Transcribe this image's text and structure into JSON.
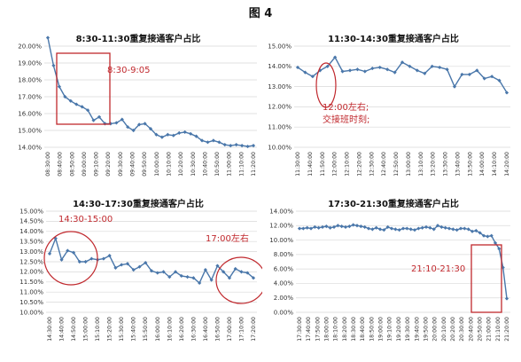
{
  "figure_title": "图 4",
  "chart_data": [
    {
      "type": "line",
      "title": "8:30-11:30重复接通客户占比",
      "ylim": [
        0.14,
        0.2
      ],
      "y_ticks": [
        "14.00%",
        "15.00%",
        "16.00%",
        "17.00%",
        "18.00%",
        "19.00%",
        "20.00%"
      ],
      "x_ticks": [
        "08:30:00",
        "08:40:00",
        "08:50:00",
        "09:00:00",
        "09:10:00",
        "09:20:00",
        "09:30:00",
        "09:40:00",
        "09:50:00",
        "10:00:00",
        "10:10:00",
        "10:20:00",
        "10:30:00",
        "10:40:00",
        "10:50:00",
        "11:00:00",
        "11:10:00",
        "11:20:00"
      ],
      "values": [
        0.205,
        0.1885,
        0.176,
        0.17,
        0.1675,
        0.1655,
        0.164,
        0.162,
        0.156,
        0.158,
        0.154,
        0.154,
        0.1545,
        0.1565,
        0.152,
        0.15,
        0.1535,
        0.154,
        0.151,
        0.1475,
        0.146,
        0.1475,
        0.147,
        0.1485,
        0.149,
        0.148,
        0.1465,
        0.144,
        0.143,
        0.144,
        0.143,
        0.1415,
        0.141,
        0.1415,
        0.141,
        0.1405,
        0.141
      ],
      "annotations": [
        {
          "text": "8:30-9:05"
        }
      ],
      "grid": true,
      "series_color": "#4a77aa"
    },
    {
      "type": "line",
      "title": "11:30-14:30重复接通客户占比",
      "ylim": [
        0.1,
        0.15
      ],
      "y_ticks": [
        "10.00%",
        "11.00%",
        "12.00%",
        "13.00%",
        "14.00%",
        "15.00%"
      ],
      "x_ticks": [
        "11:30:00",
        "11:40:00",
        "11:50:00",
        "12:00:00",
        "12:10:00",
        "12:20:00",
        "12:30:00",
        "12:40:00",
        "12:50:00",
        "13:00:00",
        "13:10:00",
        "13:20:00",
        "13:30:00",
        "13:40:00",
        "13:50:00",
        "14:00:00",
        "14:10:00",
        "14:20:00"
      ],
      "values": [
        0.1395,
        0.137,
        0.135,
        0.138,
        0.14,
        0.1445,
        0.1375,
        0.138,
        0.1385,
        0.1375,
        0.139,
        0.1395,
        0.1385,
        0.137,
        0.142,
        0.14,
        0.138,
        0.1365,
        0.14,
        0.1395,
        0.1385,
        0.13,
        0.136,
        0.136,
        0.138,
        0.134,
        0.135,
        0.133,
        0.127
      ],
      "annotations": [
        {
          "text": "12:00左右;"
        },
        {
          "text": "交接班时刻;"
        }
      ],
      "grid": true,
      "series_color": "#4a77aa"
    },
    {
      "type": "line",
      "title": "14:30-17:30重复接通客户占比",
      "ylim": [
        0.1,
        0.15
      ],
      "y_ticks": [
        "10.00%",
        "10.50%",
        "11.00%",
        "11.50%",
        "12.00%",
        "12.50%",
        "13.00%",
        "13.50%",
        "14.00%",
        "14.50%",
        "15.00%"
      ],
      "x_ticks": [
        "14:30:00",
        "14:40:00",
        "14:50:00",
        "15:00:00",
        "15:10:00",
        "15:20:00",
        "15:30:00",
        "15:40:00",
        "15:50:00",
        "16:00:00",
        "16:10:00",
        "16:20:00",
        "16:30:00",
        "16:40:00",
        "16:50:00",
        "17:00:00",
        "17:10:00",
        "17:20:00"
      ],
      "values": [
        0.129,
        0.1365,
        0.126,
        0.1305,
        0.1295,
        0.125,
        0.125,
        0.1265,
        0.126,
        0.1265,
        0.128,
        0.122,
        0.1235,
        0.124,
        0.121,
        0.1225,
        0.1245,
        0.1205,
        0.1195,
        0.12,
        0.1175,
        0.12,
        0.118,
        0.1175,
        0.117,
        0.1145,
        0.121,
        0.116,
        0.123,
        0.12,
        0.117,
        0.1215,
        0.12,
        0.1195,
        0.117
      ],
      "annotations": [
        {
          "text": "14:30-15:00"
        },
        {
          "text": "17:00左右"
        }
      ],
      "grid": true,
      "series_color": "#4a77aa"
    },
    {
      "type": "line",
      "title": "17:30-21:30重复接通客户占比",
      "ylim": [
        0.0,
        0.14
      ],
      "y_ticks": [
        "0.00%",
        "2.00%",
        "4.00%",
        "6.00%",
        "8.00%",
        "10.00%",
        "12.00%",
        "14.00%"
      ],
      "x_ticks": [
        "17:30:00",
        "17:40:00",
        "17:50:00",
        "18:00:00",
        "18:10:00",
        "18:20:00",
        "18:30:00",
        "18:40:00",
        "18:50:00",
        "19:00:00",
        "19:10:00",
        "19:20:00",
        "19:30:00",
        "19:40:00",
        "19:50:00",
        "20:00:00",
        "20:10:00",
        "20:20:00",
        "20:30:00",
        "20:40:00",
        "20:50:00",
        "21:00:00",
        "21:10:00",
        "21:20:00"
      ],
      "values": [
        0.116,
        0.116,
        0.117,
        0.116,
        0.118,
        0.117,
        0.118,
        0.119,
        0.117,
        0.118,
        0.12,
        0.119,
        0.118,
        0.119,
        0.121,
        0.12,
        0.119,
        0.118,
        0.116,
        0.115,
        0.117,
        0.115,
        0.114,
        0.118,
        0.116,
        0.115,
        0.114,
        0.116,
        0.116,
        0.115,
        0.114,
        0.116,
        0.117,
        0.118,
        0.117,
        0.115,
        0.12,
        0.118,
        0.117,
        0.116,
        0.115,
        0.114,
        0.116,
        0.116,
        0.115,
        0.112,
        0.113,
        0.11,
        0.106,
        0.105,
        0.106,
        0.096,
        0.088,
        0.062,
        0.019
      ],
      "annotations": [
        {
          "text": "21:10-21:30"
        }
      ],
      "grid": true,
      "series_color": "#4a77aa"
    }
  ]
}
